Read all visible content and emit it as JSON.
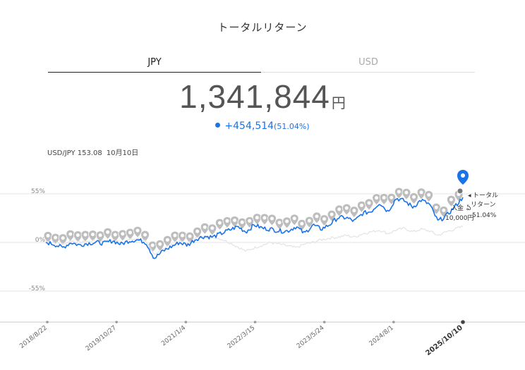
{
  "title": "トータルリターン",
  "tabs": [
    {
      "label": "JPY",
      "active": true
    },
    {
      "label": "USD",
      "active": false
    }
  ],
  "total": {
    "value": "1,341,844",
    "unit": "円"
  },
  "gain": {
    "value": "+454,514",
    "percent": "(51.04%)"
  },
  "fx": {
    "label": "USD/JPY 153.08",
    "date": "10月10日"
  },
  "annotations": {
    "total_return_label_1": "トータル",
    "total_return_label_2": "リターン",
    "total_return_percent": "51.04%",
    "deposit_label": "入金",
    "deposit_amount": "10,000円"
  },
  "colors": {
    "accent": "#1a73e8",
    "marker": "#bdbdbd",
    "benchmark": "#e3e3e3"
  },
  "chart_data": {
    "type": "line",
    "y_unit": "%",
    "yticks": [
      "55%",
      "0%",
      "-55%"
    ],
    "ylim": [
      -95,
      75
    ],
    "xticks": [
      "2018/8/22",
      "2019/10/27",
      "2021/1/4",
      "2022/3/15",
      "2023/5/24",
      "2024/8/1",
      "2025/10/10"
    ],
    "series": [
      {
        "values": [
          0,
          -2,
          -6,
          0,
          -3,
          -1,
          0,
          -1,
          2,
          -2,
          2,
          3,
          0,
          -18,
          -10,
          -5,
          0,
          -3,
          4,
          7,
          6,
          10,
          14,
          18,
          12,
          20,
          16,
          15,
          13,
          13,
          18,
          10,
          20,
          15,
          20,
          28,
          28,
          24,
          33,
          35,
          45,
          35,
          50,
          47,
          40,
          48,
          43,
          24,
          30,
          40,
          51.04
        ]
      },
      {
        "values": [
          1,
          0,
          -2,
          2,
          0,
          1,
          2,
          1,
          3,
          0,
          3,
          4,
          2,
          -15,
          -7,
          -3,
          1,
          -1,
          5,
          7,
          6,
          4,
          0,
          -5,
          -10,
          -6,
          -3,
          0,
          -2,
          -4,
          -6,
          -2,
          0,
          3,
          5,
          6,
          8,
          6,
          10,
          12,
          14,
          10,
          14,
          16,
          12,
          15,
          13,
          8,
          12,
          15,
          18
        ]
      }
    ],
    "markers": {
      "type": "deposit-pin",
      "count": 56
    }
  }
}
